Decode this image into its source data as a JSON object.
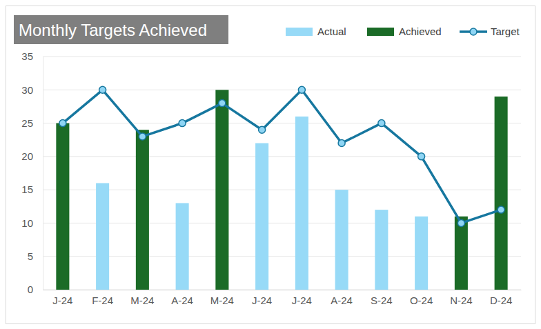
{
  "chart_data": {
    "type": "bar",
    "title": "Monthly Targets Achieved",
    "categories": [
      "J-24",
      "F-24",
      "M-24",
      "A-24",
      "M-24",
      "J-24",
      "J-24",
      "A-24",
      "S-24",
      "O-24",
      "N-24",
      "D-24"
    ],
    "series": [
      {
        "name": "Actual",
        "type": "bar",
        "color": "#97daf7",
        "values": [
          null,
          16,
          null,
          13,
          null,
          22,
          26,
          15,
          12,
          11,
          null,
          null
        ]
      },
      {
        "name": "Achieved",
        "type": "bar",
        "color": "#1b6b27",
        "values": [
          25,
          null,
          24,
          null,
          30,
          null,
          null,
          null,
          null,
          null,
          11,
          29
        ]
      },
      {
        "name": "Target",
        "type": "line",
        "color": "#16779f",
        "marker": "circle",
        "line_style": "solid",
        "values": [
          25,
          30,
          23,
          25,
          28,
          24,
          30,
          22,
          25,
          20,
          10,
          12
        ]
      }
    ],
    "ylim": [
      0,
      35
    ],
    "yticks": [
      0,
      5,
      10,
      15,
      20,
      25,
      30,
      35
    ],
    "grid": true,
    "legend": "top-right"
  }
}
